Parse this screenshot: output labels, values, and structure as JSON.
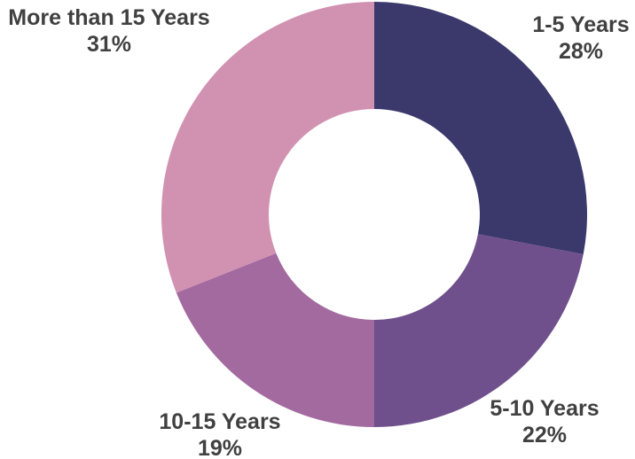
{
  "chart_data": {
    "type": "pie",
    "subtype": "donut",
    "title": "",
    "direction": "clockwise",
    "start_angle_deg_from_top": 0,
    "donut_hole_ratio": 0.495,
    "background_color": "#ffffff",
    "label_color": "#404040",
    "categories": [
      "1-5 Years",
      "5-10 Years",
      "10-15 Years",
      "More than 15 Years"
    ],
    "values": [
      28,
      22,
      19,
      31
    ],
    "segments": [
      {
        "label": "1-5 Years",
        "pct": 28,
        "pct_label": "28%",
        "color": "#3b396c"
      },
      {
        "label": "5-10 Years",
        "pct": 22,
        "pct_label": "22%",
        "color": "#6f508c"
      },
      {
        "label": "10-15 Years",
        "pct": 19,
        "pct_label": "19%",
        "color": "#a36aa0"
      },
      {
        "label": "More than 15 Years",
        "pct": 31,
        "pct_label": "31%",
        "color": "#d191b1"
      }
    ]
  }
}
